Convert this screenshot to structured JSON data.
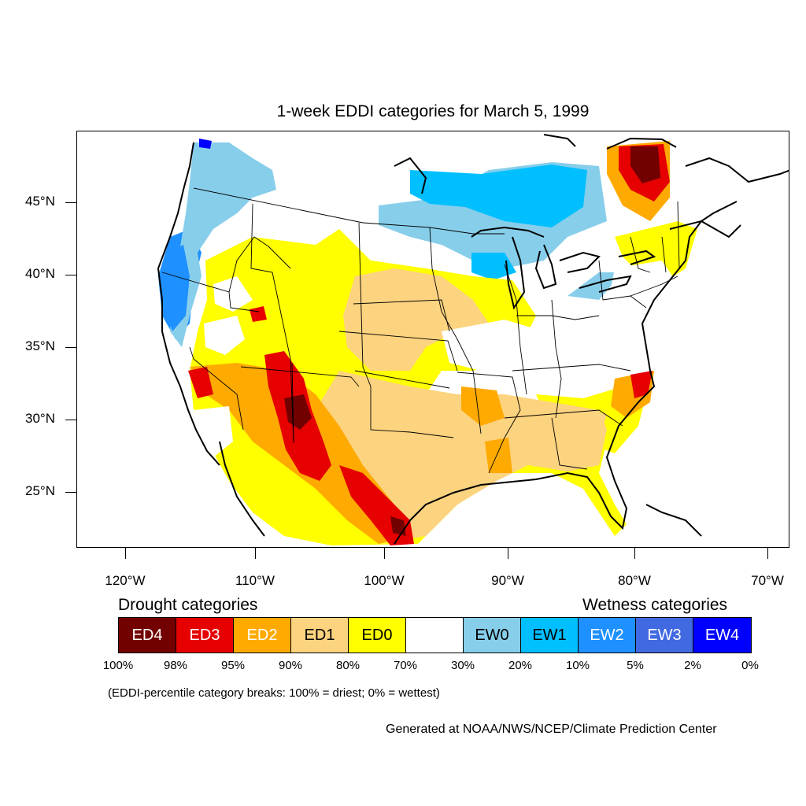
{
  "title": "1-week EDDI categories for March 5, 1999",
  "lat_labels": [
    "45°N",
    "40°N",
    "35°N",
    "30°N",
    "25°N"
  ],
  "lon_labels": [
    "120°W",
    "110°W",
    "100°W",
    "90°W",
    "80°W",
    "70°W"
  ],
  "legend": {
    "drought_heading": "Drought categories",
    "wetness_heading": "Wetness categories",
    "categories": [
      {
        "label": "ED4",
        "color": "#730000",
        "text_color": "#ffffff"
      },
      {
        "label": "ED3",
        "color": "#e60000",
        "text_color": "#ffffff"
      },
      {
        "label": "ED2",
        "color": "#ffaa00",
        "text_color": "#ffffff"
      },
      {
        "label": "ED1",
        "color": "#fcd37f",
        "text_color": "#000000"
      },
      {
        "label": "ED0",
        "color": "#ffff00",
        "text_color": "#000000"
      },
      {
        "label": "",
        "color": "#ffffff",
        "text_color": "#000000"
      },
      {
        "label": "EW0",
        "color": "#87ceeb",
        "text_color": "#000000"
      },
      {
        "label": "EW1",
        "color": "#00bfff",
        "text_color": "#000000"
      },
      {
        "label": "EW2",
        "color": "#1e90ff",
        "text_color": "#ffffff"
      },
      {
        "label": "EW3",
        "color": "#4169e1",
        "text_color": "#ffffff"
      },
      {
        "label": "EW4",
        "color": "#0000ff",
        "text_color": "#ffffff"
      }
    ],
    "breaks": [
      "100%",
      "98%",
      "95%",
      "90%",
      "80%",
      "70%",
      "30%",
      "20%",
      "10%",
      "5%",
      "2%",
      "0%"
    ]
  },
  "note": "(EDDI-percentile category breaks: 100% = driest; 0% = wettest)",
  "credit": "Generated at NOAA/NWS/NCEP/Climate Prediction Center"
}
